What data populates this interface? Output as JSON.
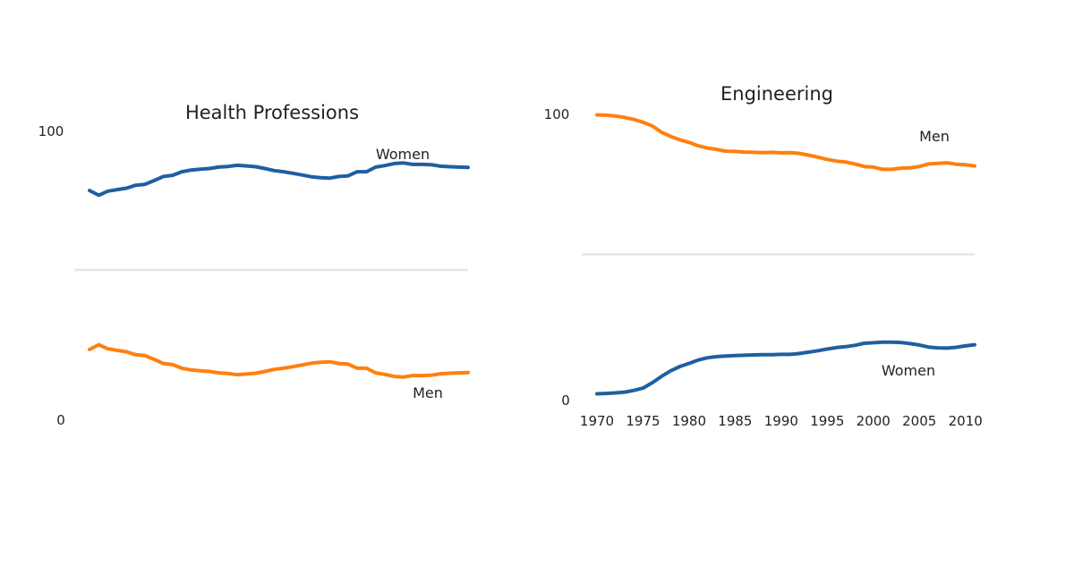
{
  "chart_data": [
    {
      "type": "line",
      "title": "Health Professions",
      "xlabel": "",
      "ylabel": "",
      "xlim": [
        1970,
        2011
      ],
      "ylim": [
        0,
        100
      ],
      "yticks": [
        0,
        100
      ],
      "ytick_labels": [
        "0",
        "100"
      ],
      "xticks": [],
      "xtick_labels": [],
      "grid": false,
      "midline": 50,
      "x": [
        1970,
        1971,
        1972,
        1973,
        1974,
        1975,
        1976,
        1977,
        1978,
        1979,
        1980,
        1981,
        1982,
        1983,
        1984,
        1985,
        1986,
        1987,
        1988,
        1989,
        1990,
        1991,
        1992,
        1993,
        1994,
        1995,
        1996,
        1997,
        1998,
        1999,
        2000,
        2001,
        2002,
        2003,
        2004,
        2005,
        2006,
        2007,
        2008,
        2009,
        2010,
        2011
      ],
      "series": [
        {
          "name": "Women",
          "color": "#1f5fa0",
          "label": "Women",
          "values": [
            77.1,
            75.5,
            76.9,
            77.4,
            77.9,
            78.9,
            79.2,
            80.5,
            81.9,
            82.3,
            83.5,
            84.1,
            84.4,
            84.6,
            85.1,
            85.3,
            85.7,
            85.5,
            85.2,
            84.6,
            83.9,
            83.5,
            83.0,
            82.4,
            81.8,
            81.5,
            81.3,
            81.9,
            82.1,
            83.5,
            83.5,
            85.1,
            85.6,
            86.3,
            86.5,
            86.0,
            86.0,
            85.9,
            85.4,
            85.2,
            85.1,
            85.0
          ]
        },
        {
          "name": "Men",
          "color": "#ff7f0e",
          "label": "Men",
          "values": [
            22.9,
            24.5,
            23.1,
            22.6,
            22.1,
            21.1,
            20.8,
            19.5,
            18.1,
            17.7,
            16.5,
            15.9,
            15.6,
            15.4,
            14.9,
            14.7,
            14.3,
            14.5,
            14.8,
            15.4,
            16.1,
            16.5,
            17.0,
            17.6,
            18.2,
            18.5,
            18.7,
            18.1,
            17.9,
            16.5,
            16.5,
            14.9,
            14.4,
            13.7,
            13.5,
            14.0,
            14.0,
            14.1,
            14.6,
            14.8,
            14.9,
            15.0
          ]
        }
      ]
    },
    {
      "type": "line",
      "title": "Engineering",
      "xlabel": "",
      "ylabel": "",
      "xlim": [
        1970,
        2011
      ],
      "ylim": [
        0,
        100
      ],
      "yticks": [
        0,
        100
      ],
      "ytick_labels": [
        "0",
        "100"
      ],
      "xticks": [
        1970,
        1975,
        1980,
        1985,
        1990,
        1995,
        2000,
        2005,
        2010
      ],
      "xtick_labels": [
        "1970",
        "1975",
        "1980",
        "1985",
        "1990",
        "1995",
        "2000",
        "2005",
        "2010"
      ],
      "grid": false,
      "midline": 50,
      "x": [
        1970,
        1971,
        1972,
        1973,
        1974,
        1975,
        1976,
        1977,
        1978,
        1979,
        1980,
        1981,
        1982,
        1983,
        1984,
        1985,
        1986,
        1987,
        1988,
        1989,
        1990,
        1991,
        1992,
        1993,
        1994,
        1995,
        1996,
        1997,
        1998,
        1999,
        2000,
        2001,
        2002,
        2003,
        2004,
        2005,
        2006,
        2007,
        2008,
        2009,
        2010,
        2011
      ],
      "series": [
        {
          "name": "Men",
          "color": "#ff7f0e",
          "label": "Men",
          "values": [
            99.2,
            99.1,
            98.8,
            98.3,
            97.6,
            96.6,
            95.3,
            93.1,
            91.6,
            90.4,
            89.5,
            88.3,
            87.5,
            87.0,
            86.4,
            86.3,
            86.1,
            86.0,
            85.9,
            86.0,
            85.8,
            85.9,
            85.6,
            85.0,
            84.3,
            83.5,
            82.9,
            82.6,
            81.9,
            81.0,
            80.8,
            80.0,
            80.0,
            80.4,
            80.5,
            81.0,
            81.9,
            82.1,
            82.3,
            81.8,
            81.6,
            81.2
          ]
        },
        {
          "name": "Women",
          "color": "#1f5fa0",
          "label": "Women",
          "values": [
            0.8,
            0.9,
            1.1,
            1.4,
            2.0,
            2.8,
            4.7,
            6.9,
            8.9,
            10.4,
            11.5,
            12.7,
            13.5,
            13.9,
            14.1,
            14.3,
            14.4,
            14.5,
            14.6,
            14.6,
            14.7,
            14.7,
            15.0,
            15.5,
            16.0,
            16.6,
            17.1,
            17.4,
            17.9,
            18.6,
            18.8,
            19.0,
            19.0,
            18.9,
            18.5,
            18.0,
            17.3,
            17.0,
            16.9,
            17.2,
            17.7,
            18.1
          ]
        }
      ]
    }
  ]
}
